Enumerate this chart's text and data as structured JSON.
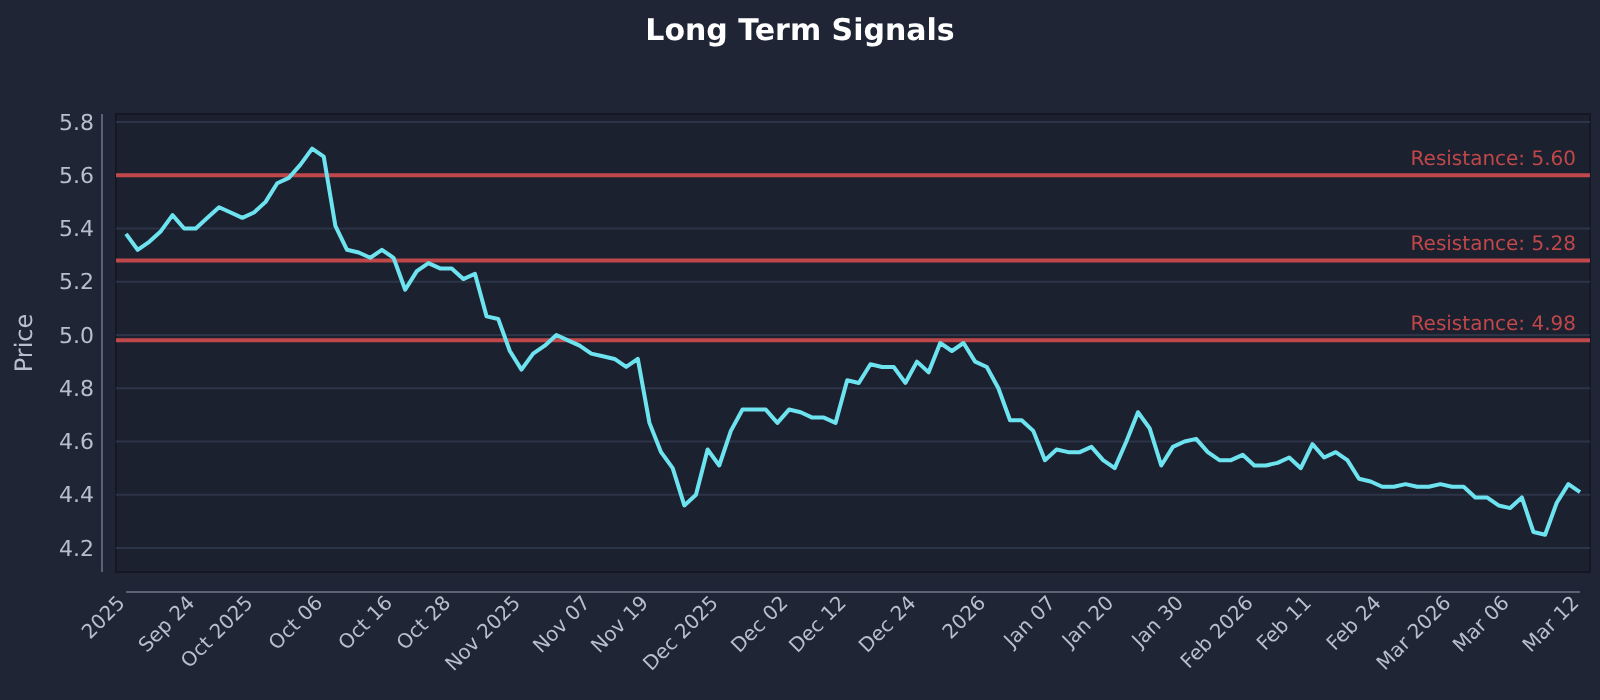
{
  "chart_data": {
    "type": "line",
    "title": "Long Term Signals",
    "ylabel": "Price",
    "categories": [
      "2025",
      null,
      null,
      null,
      null,
      null,
      "Sep 24",
      null,
      null,
      null,
      null,
      "Oct 2025",
      null,
      null,
      null,
      null,
      null,
      "Oct 06",
      null,
      null,
      null,
      null,
      null,
      "Oct 16",
      null,
      null,
      null,
      null,
      "Oct 28",
      null,
      null,
      null,
      null,
      null,
      "Nov 2025",
      null,
      null,
      null,
      null,
      null,
      "Nov 07",
      null,
      null,
      null,
      null,
      "Nov 19",
      null,
      null,
      null,
      null,
      null,
      "Dec 2025",
      null,
      null,
      null,
      null,
      null,
      "Dec 02",
      null,
      null,
      null,
      null,
      "Dec 12",
      null,
      null,
      null,
      null,
      null,
      "Dec 24",
      null,
      null,
      null,
      null,
      null,
      "2026",
      null,
      null,
      null,
      null,
      null,
      "Jan 07",
      null,
      null,
      null,
      null,
      "Jan 20",
      null,
      null,
      null,
      null,
      null,
      "Jan 30",
      null,
      null,
      null,
      null,
      null,
      "Feb 2026",
      null,
      null,
      null,
      null,
      "Feb 11",
      null,
      null,
      null,
      null,
      null,
      "Feb 24",
      null,
      null,
      null,
      null,
      null,
      "Mar 2026",
      null,
      null,
      null,
      null,
      "Mar 06",
      null,
      null,
      null,
      null,
      null,
      "Mar 12"
    ],
    "series": [
      {
        "color": "#6ee3f0",
        "values": [
          5.38,
          5.32,
          5.35,
          5.39,
          5.45,
          5.4,
          5.4,
          5.44,
          5.48,
          5.46,
          5.44,
          5.46,
          5.5,
          5.57,
          5.59,
          5.64,
          5.7,
          5.67,
          5.41,
          5.32,
          5.31,
          5.29,
          5.32,
          5.29,
          5.17,
          5.24,
          5.27,
          5.25,
          5.25,
          5.21,
          5.23,
          5.07,
          5.06,
          4.94,
          4.87,
          4.93,
          4.96,
          5.0,
          4.98,
          4.96,
          4.93,
          4.92,
          4.91,
          4.88,
          4.91,
          4.67,
          4.56,
          4.5,
          4.36,
          4.4,
          4.57,
          4.51,
          4.64,
          4.72,
          4.72,
          4.72,
          4.67,
          4.72,
          4.71,
          4.69,
          4.69,
          4.67,
          4.83,
          4.82,
          4.89,
          4.88,
          4.88,
          4.82,
          4.9,
          4.86,
          4.97,
          4.94,
          4.97,
          4.9,
          4.88,
          4.8,
          4.68,
          4.68,
          4.64,
          4.53,
          4.57,
          4.56,
          4.56,
          4.58,
          4.53,
          4.5,
          4.6,
          4.71,
          4.65,
          4.51,
          4.58,
          4.6,
          4.61,
          4.56,
          4.53,
          4.53,
          4.55,
          4.51,
          4.51,
          4.52,
          4.54,
          4.5,
          4.59,
          4.54,
          4.56,
          4.53,
          4.46,
          4.45,
          4.43,
          4.43,
          4.44,
          4.43,
          4.43,
          4.44,
          4.43,
          4.43,
          4.39,
          4.39,
          4.36,
          4.35,
          4.39,
          4.26,
          4.25,
          4.37,
          4.44,
          4.41
        ]
      }
    ],
    "ylim": [
      4.11,
      5.83
    ],
    "yticks": [
      {
        "value": 4.2,
        "label": "4.2"
      },
      {
        "value": 4.4,
        "label": "4.4"
      },
      {
        "value": 4.6,
        "label": "4.6"
      },
      {
        "value": 4.8,
        "label": "4.8"
      },
      {
        "value": 5,
        "label": "5.0"
      },
      {
        "value": 5.2,
        "label": "5.2"
      },
      {
        "value": 5.4,
        "label": "5.4"
      },
      {
        "value": 5.6,
        "label": "5.6"
      },
      {
        "value": 5.8,
        "label": "5.8"
      }
    ],
    "grid": "y",
    "ref_lines": [
      {
        "axis": "y",
        "value": 5.6,
        "label": "Resistance: 5.60",
        "color": "#c0474a"
      },
      {
        "axis": "y",
        "value": 5.28,
        "label": "Resistance: 5.28",
        "color": "#c0474a"
      },
      {
        "axis": "y",
        "value": 4.98,
        "label": "Resistance: 4.98",
        "color": "#c0474a"
      }
    ]
  }
}
